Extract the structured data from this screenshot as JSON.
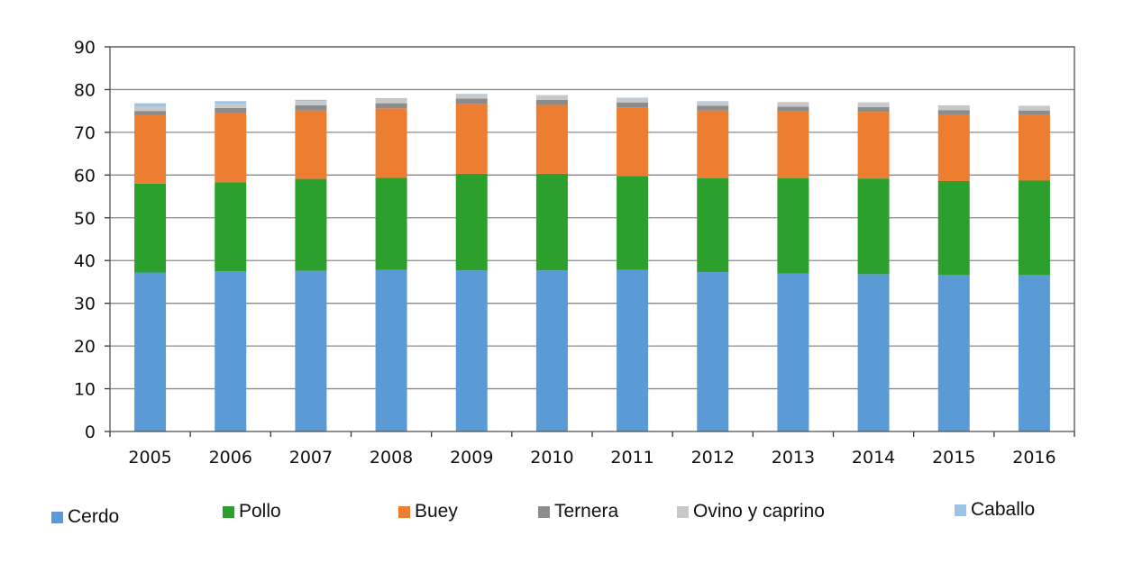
{
  "chart_data": {
    "type": "bar",
    "stacked": true,
    "categories": [
      "2005",
      "2006",
      "2007",
      "2008",
      "2009",
      "2010",
      "2011",
      "2012",
      "2013",
      "2014",
      "2015",
      "2016"
    ],
    "series": [
      {
        "name": "Cerdo",
        "color": "#5b9bd5",
        "values": [
          37.2,
          37.5,
          37.6,
          37.8,
          37.7,
          37.7,
          37.8,
          37.3,
          37.0,
          36.8,
          36.6,
          36.6
        ]
      },
      {
        "name": "Pollo",
        "color": "#2ca02c",
        "values": [
          20.8,
          20.8,
          21.5,
          21.6,
          22.6,
          22.6,
          22.0,
          22.0,
          22.3,
          22.4,
          22.0,
          22.1
        ]
      },
      {
        "name": "Buey",
        "color": "#ed7d31",
        "values": [
          16.0,
          16.2,
          16.0,
          16.2,
          16.4,
          16.1,
          16.0,
          15.8,
          15.6,
          15.6,
          15.6,
          15.4
        ]
      },
      {
        "name": "Ternera",
        "color": "#8c8c8c",
        "values": [
          1.0,
          1.2,
          1.2,
          1.2,
          1.2,
          1.2,
          1.2,
          1.1,
          1.1,
          1.1,
          1.0,
          1.0
        ]
      },
      {
        "name": "Ovino y caprino",
        "color": "#c8c8c8",
        "values": [
          1.0,
          1.0,
          1.0,
          1.0,
          1.0,
          1.0,
          1.0,
          1.0,
          1.0,
          1.0,
          1.0,
          1.0
        ]
      },
      {
        "name": "Caballo",
        "color": "#9dc3e6",
        "values": [
          0.8,
          0.6,
          0.3,
          0.2,
          0.1,
          0.1,
          0.1,
          0.1,
          0.1,
          0.1,
          0.1,
          0.1
        ]
      }
    ],
    "ylim": [
      0,
      90
    ],
    "yticks": [
      0,
      10,
      20,
      30,
      40,
      50,
      60,
      70,
      80,
      90
    ],
    "grid": true,
    "legend_position": "bottom",
    "title": "",
    "xlabel": "",
    "ylabel": ""
  }
}
